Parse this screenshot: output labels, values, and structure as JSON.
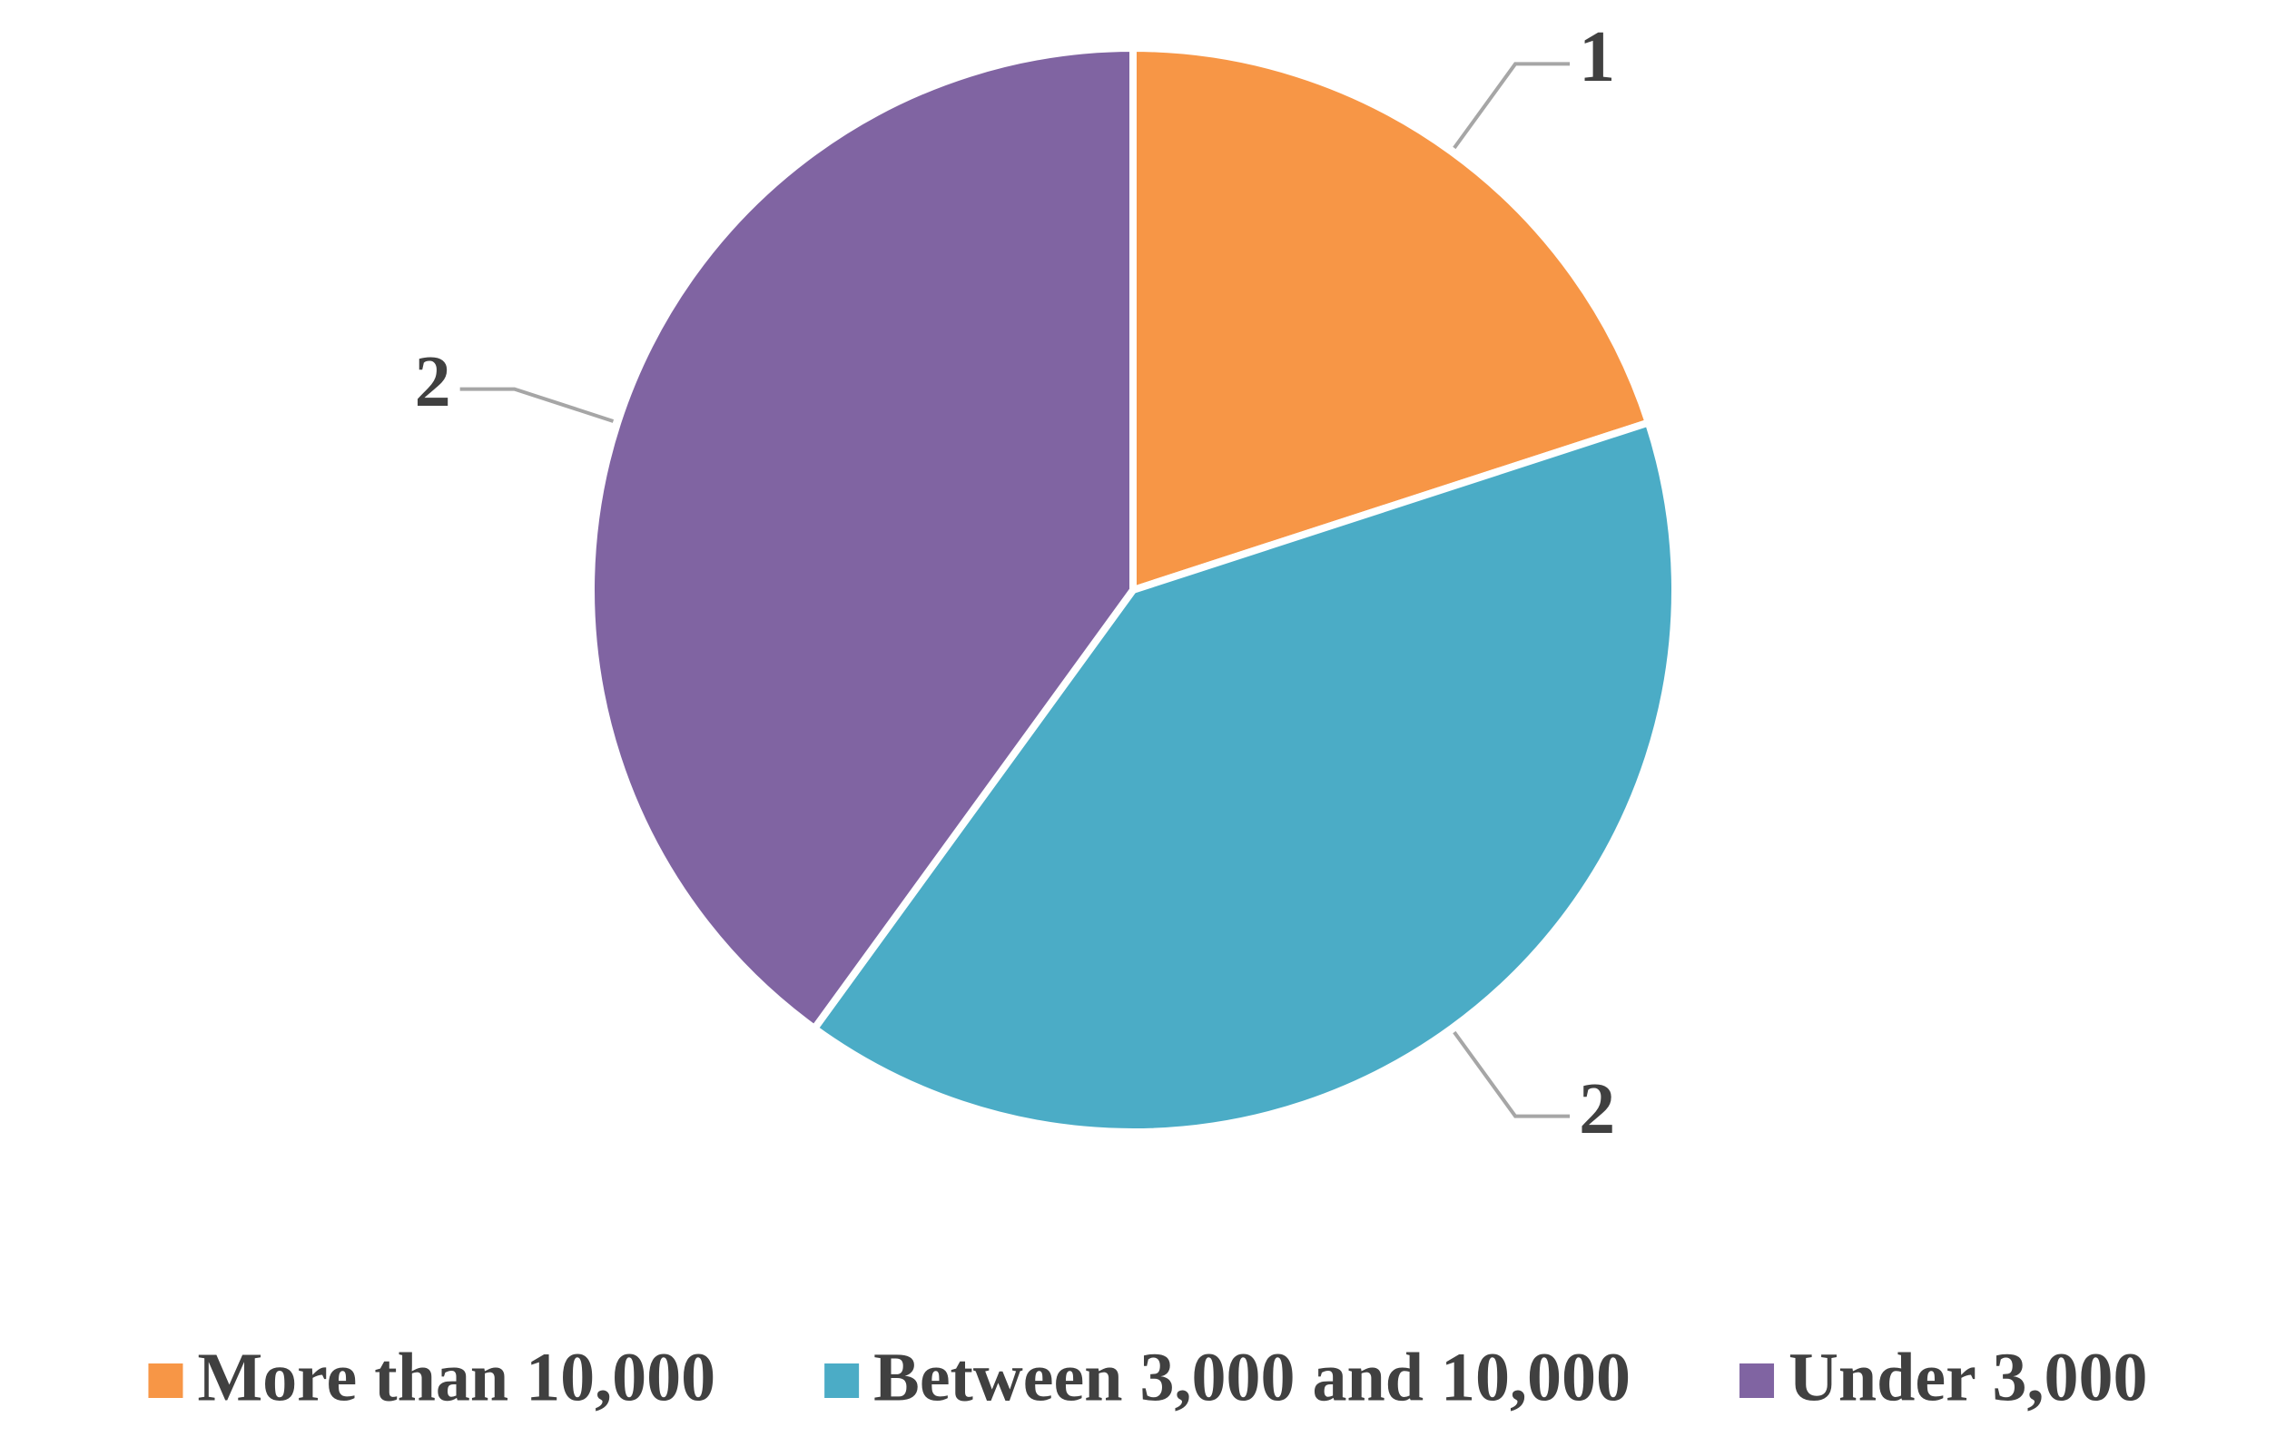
{
  "chart_data": {
    "type": "pie",
    "categories": [
      "More than 10,000",
      "Between 3,000 and 10,000",
      "Under 3,000"
    ],
    "values": [
      1,
      2,
      2
    ],
    "colors": [
      "#f79646",
      "#4bacc6",
      "#8064a2"
    ],
    "legend": "bottom"
  }
}
